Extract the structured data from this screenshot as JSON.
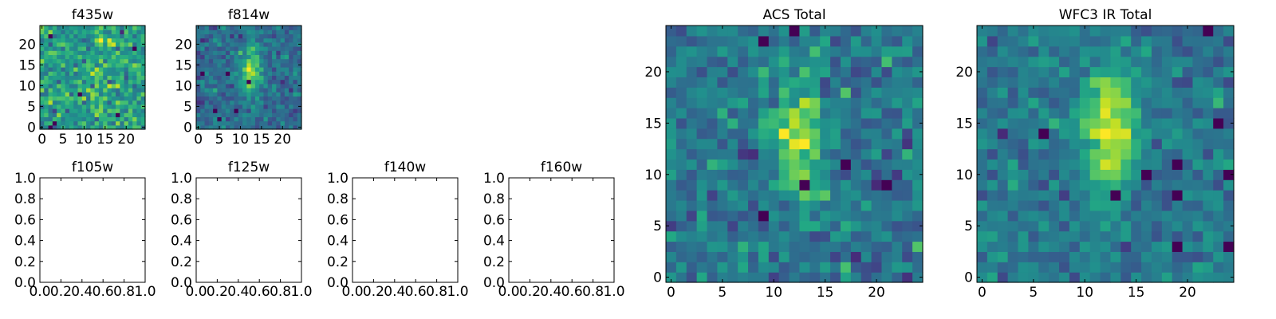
{
  "colormap": "viridis",
  "colors": {
    "background": "#ffffff",
    "axis": "#000000",
    "viridis_low": "#440154",
    "viridis_mid": "#21918c",
    "viridis_high": "#fde725"
  },
  "chart_data": [
    {
      "type": "heatmap",
      "title": "f435w",
      "grid_size": 25,
      "data_source": "noise_with_faint_center",
      "seed": 11,
      "signal": 0.15,
      "noise": 1.0,
      "xlim": [
        -0.5,
        24.5
      ],
      "ylim": [
        -0.5,
        24.5
      ],
      "xticks": [
        0,
        5,
        10,
        15,
        20
      ],
      "yticks": [
        0,
        5,
        10,
        15,
        20
      ]
    },
    {
      "type": "heatmap",
      "title": "f814w",
      "grid_size": 25,
      "data_source": "noise_with_elongated_source",
      "seed": 23,
      "signal": 1.4,
      "noise": 1.0,
      "xlim": [
        -0.5,
        24.5
      ],
      "ylim": [
        -0.5,
        24.5
      ],
      "xticks": [
        0,
        5,
        10,
        15,
        20
      ],
      "yticks": [
        0,
        5,
        10,
        15,
        20
      ]
    },
    {
      "type": "heatmap",
      "title": "ACS Total",
      "grid_size": 25,
      "data_source": "noise_with_elongated_source",
      "seed": 37,
      "signal": 1.1,
      "noise": 1.0,
      "xlim": [
        -0.5,
        24.5
      ],
      "ylim": [
        -0.5,
        24.5
      ],
      "xticks": [
        0,
        5,
        10,
        15,
        20
      ],
      "yticks": [
        0,
        5,
        10,
        15,
        20
      ]
    },
    {
      "type": "heatmap",
      "title": "WFC3 IR Total",
      "grid_size": 25,
      "data_source": "noise_with_elongated_source",
      "seed": 53,
      "signal": 1.8,
      "noise": 1.0,
      "xlim": [
        -0.5,
        24.5
      ],
      "ylim": [
        -0.5,
        24.5
      ],
      "xticks": [
        0,
        5,
        10,
        15,
        20
      ],
      "yticks": [
        0,
        5,
        10,
        15,
        20
      ]
    },
    {
      "type": "heatmap",
      "title": "f105w",
      "empty": true,
      "xlim": [
        0,
        1
      ],
      "ylim": [
        0,
        1
      ],
      "xtick_labels": [
        "0.0",
        "0.2",
        "0.4",
        "0.6",
        "0.8",
        "1.0"
      ],
      "ytick_labels": [
        "0.0",
        "0.2",
        "0.4",
        "0.6",
        "0.8",
        "1.0"
      ]
    },
    {
      "type": "heatmap",
      "title": "f125w",
      "empty": true,
      "xlim": [
        0,
        1
      ],
      "ylim": [
        0,
        1
      ],
      "xtick_labels": [
        "0.0",
        "0.2",
        "0.4",
        "0.6",
        "0.8",
        "1.0"
      ],
      "ytick_labels": [
        "0.0",
        "0.2",
        "0.4",
        "0.6",
        "0.8",
        "1.0"
      ]
    },
    {
      "type": "heatmap",
      "title": "f140w",
      "empty": true,
      "xlim": [
        0,
        1
      ],
      "ylim": [
        0,
        1
      ],
      "xtick_labels": [
        "0.0",
        "0.2",
        "0.4",
        "0.6",
        "0.8",
        "1.0"
      ],
      "ytick_labels": [
        "0.0",
        "0.2",
        "0.4",
        "0.6",
        "0.8",
        "1.0"
      ]
    },
    {
      "type": "heatmap",
      "title": "f160w",
      "empty": true,
      "xlim": [
        0,
        1
      ],
      "ylim": [
        0,
        1
      ],
      "xtick_labels": [
        "0.0",
        "0.2",
        "0.4",
        "0.6",
        "0.8",
        "1.0"
      ],
      "ytick_labels": [
        "0.0",
        "0.2",
        "0.4",
        "0.6",
        "0.8",
        "1.0"
      ]
    }
  ]
}
